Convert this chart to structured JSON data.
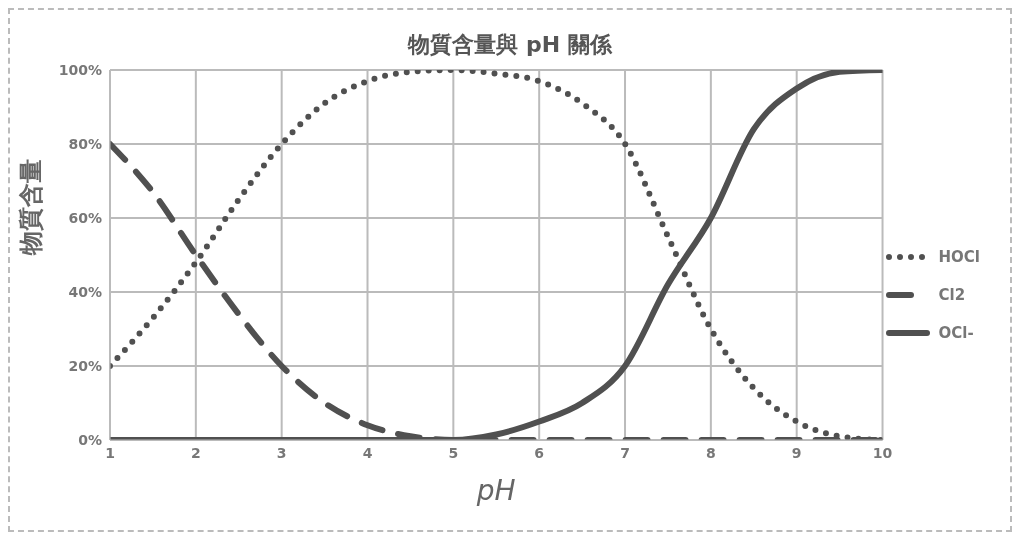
{
  "chart_data": {
    "type": "line",
    "title": "物質含量與 pH 關係",
    "xlabel": "pH",
    "ylabel": "物質含量",
    "x": [
      1,
      1.5,
      2,
      2.5,
      3,
      3.5,
      4,
      4.5,
      5,
      5.5,
      6,
      6.5,
      7,
      7.5,
      8,
      8.5,
      9,
      9.5,
      10
    ],
    "series": [
      {
        "name": "HOCl",
        "color": "#505050",
        "line_style": "dotted",
        "values": [
          20,
          33,
          48,
          65,
          80,
          91,
          97,
          99.5,
          100,
          99,
          97,
          91,
          80,
          55,
          30,
          14,
          5,
          1,
          0
        ]
      },
      {
        "name": "Cl2",
        "color": "#505050",
        "line_style": "dashed",
        "values": [
          80,
          67,
          50,
          34,
          20,
          10,
          4,
          1,
          0,
          0,
          0,
          0,
          0,
          0,
          0,
          0,
          0,
          0,
          0
        ]
      },
      {
        "name": "OCl-",
        "color": "#505050",
        "line_style": "solid",
        "values": [
          0,
          0,
          0,
          0,
          0,
          0,
          0,
          0,
          0,
          1.5,
          5,
          10,
          20,
          42,
          60,
          84,
          95,
          99.5,
          100
        ]
      }
    ],
    "xlim": [
      1,
      10
    ],
    "xticks": [
      1,
      2,
      3,
      4,
      5,
      6,
      7,
      8,
      9,
      10
    ],
    "ylim": [
      0,
      100
    ],
    "yticks": [
      {
        "value": 0,
        "label": "0%"
      },
      {
        "value": 20,
        "label": "20%"
      },
      {
        "value": 40,
        "label": "40%"
      },
      {
        "value": 60,
        "label": "60%"
      },
      {
        "value": 80,
        "label": "80%"
      },
      {
        "value": 100,
        "label": "100%"
      }
    ],
    "grid": true,
    "legend": "right",
    "marker": "none"
  }
}
